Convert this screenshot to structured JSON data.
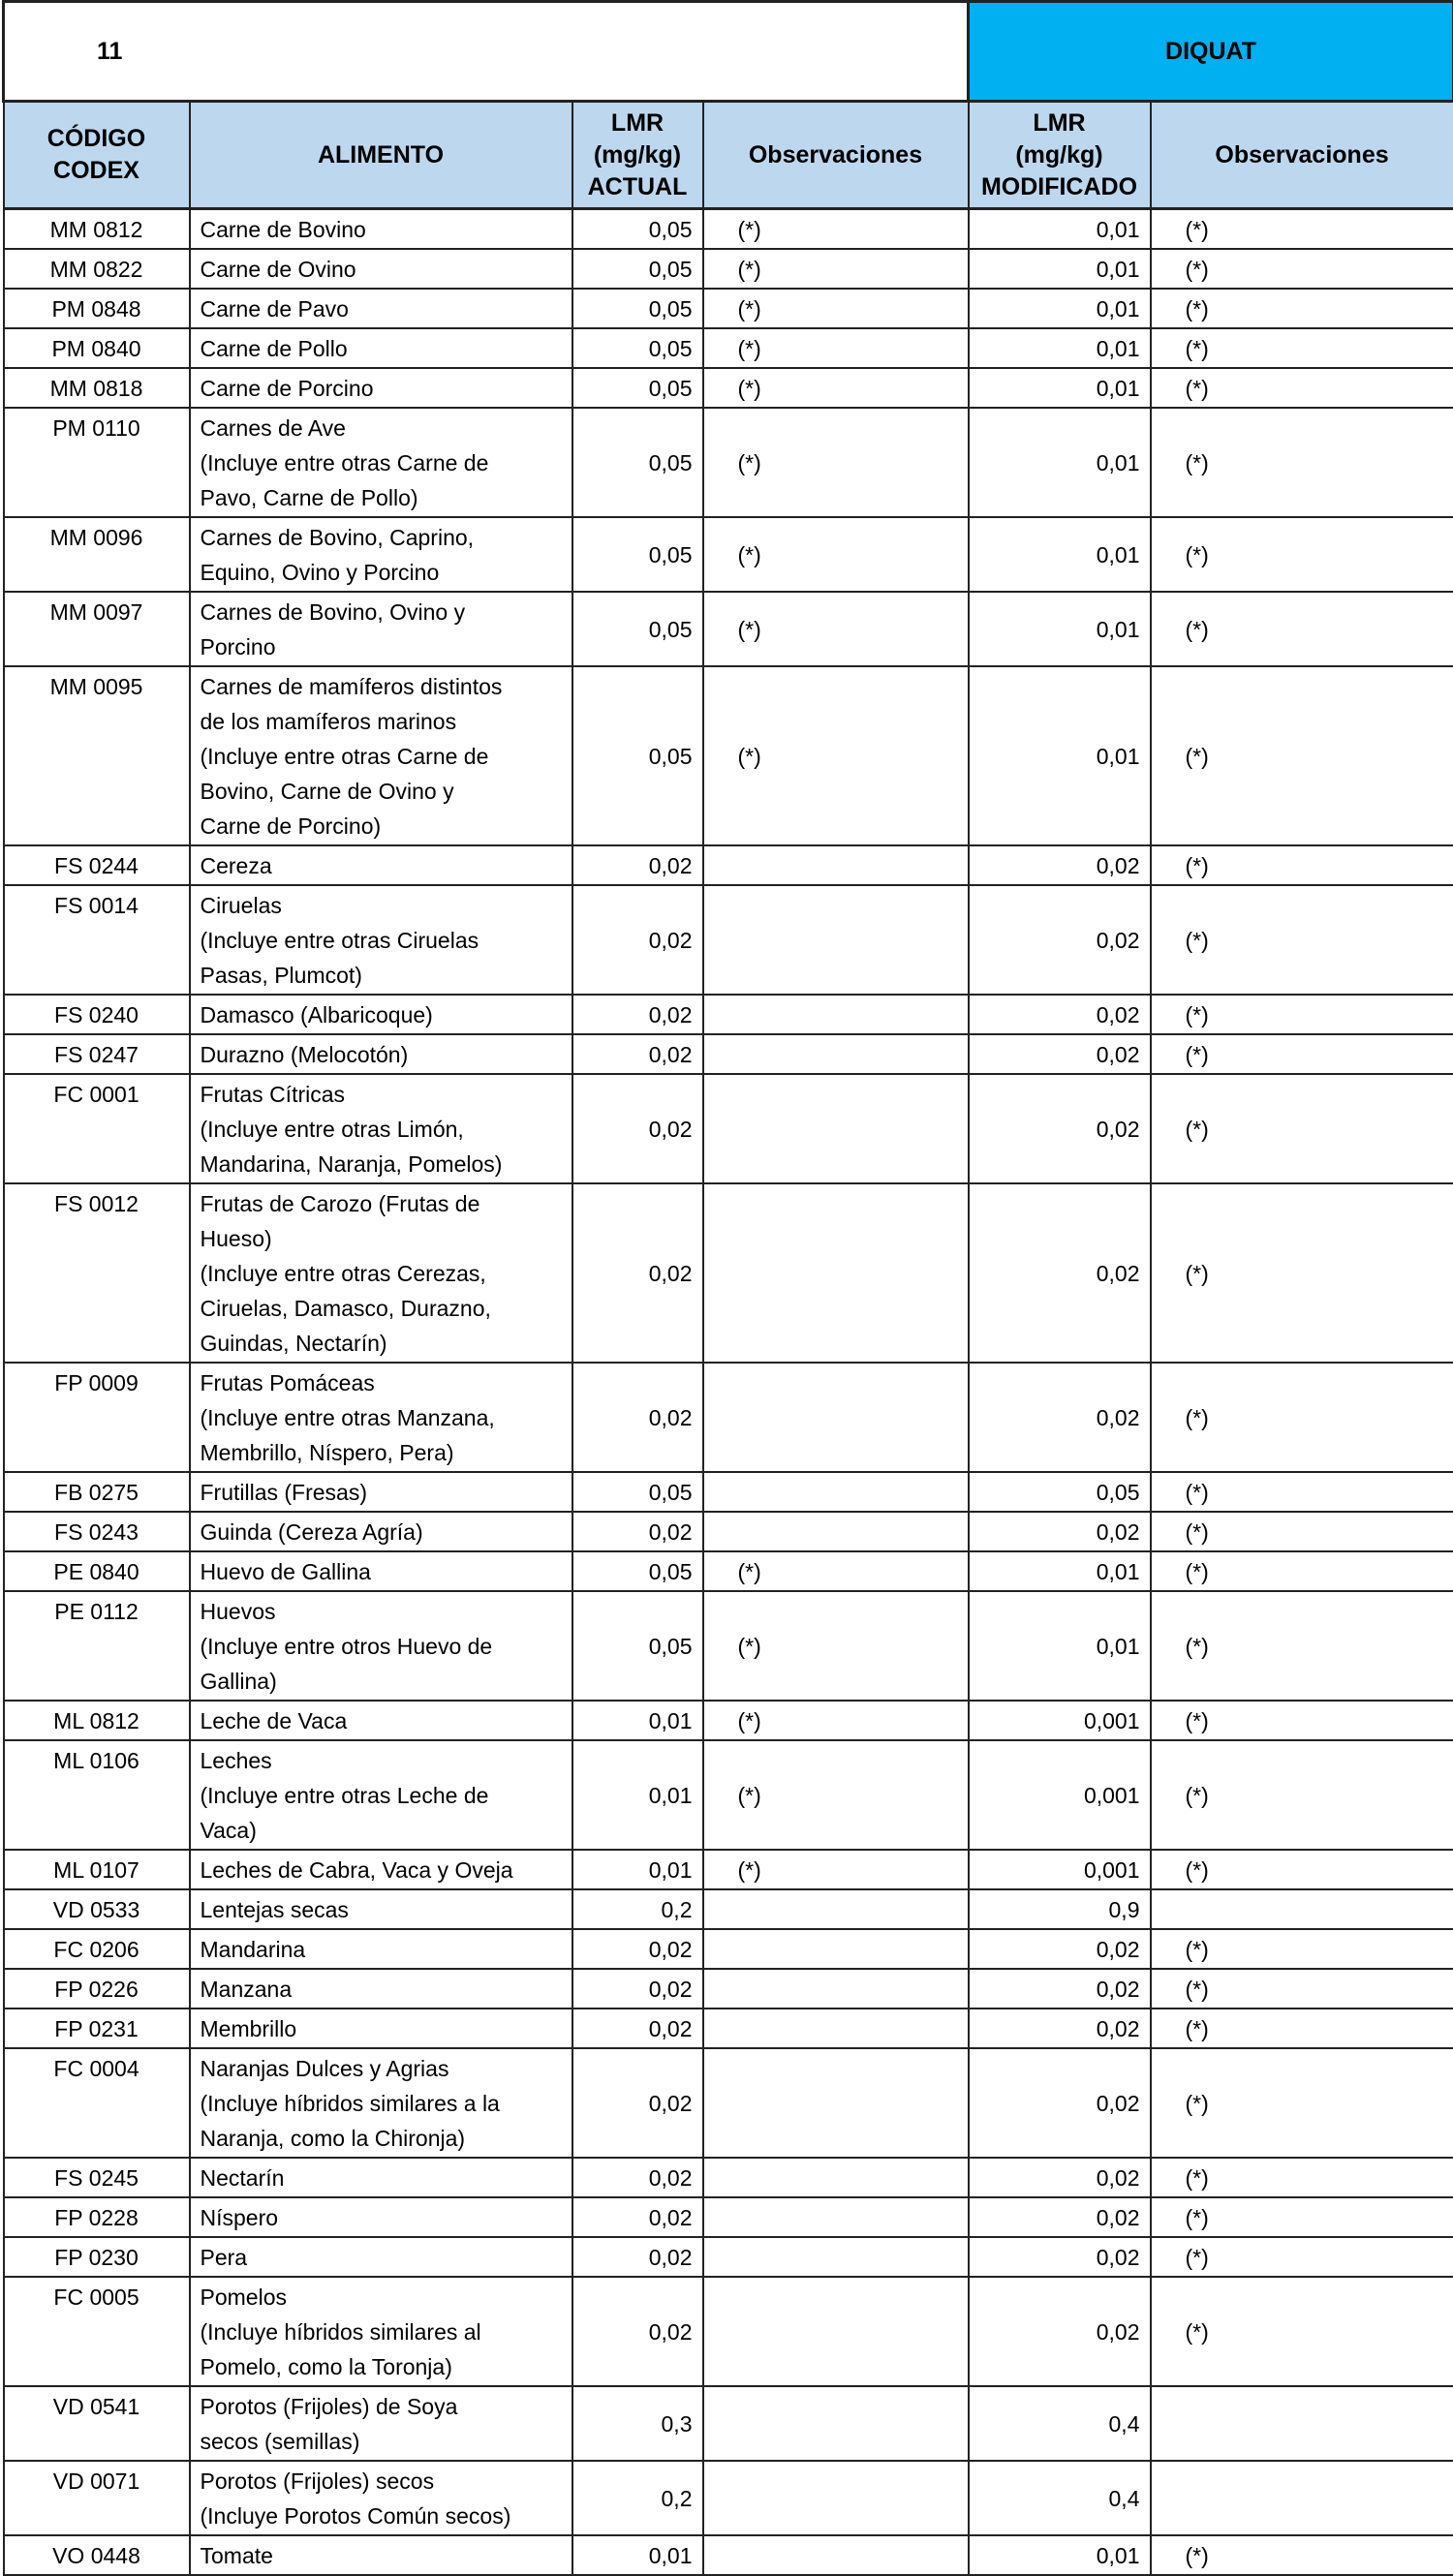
{
  "header": {
    "number": "11",
    "substance": "DIQUAT",
    "columns": {
      "code": [
        "CÓDIGO",
        "CODEX"
      ],
      "food": "ALIMENTO",
      "lmr_actual": [
        "LMR",
        "(mg/kg)",
        "ACTUAL"
      ],
      "obs_actual": "Observaciones",
      "lmr_mod": [
        "LMR",
        "(mg/kg)",
        "MODIFICADO"
      ],
      "obs_mod": "Observaciones"
    }
  },
  "colors": {
    "substance_bg": "#00B0F0",
    "header_bg": "#BDD7EE"
  },
  "rows": [
    {
      "code": "MM 0812",
      "food": [
        "Carne de Bovino"
      ],
      "lmr_actual": "0,05",
      "obs_actual": "(*)",
      "lmr_mod": "0,01",
      "obs_mod": "(*)"
    },
    {
      "code": "MM 0822",
      "food": [
        "Carne de Ovino"
      ],
      "lmr_actual": "0,05",
      "obs_actual": "(*)",
      "lmr_mod": "0,01",
      "obs_mod": "(*)"
    },
    {
      "code": "PM 0848",
      "food": [
        "Carne de Pavo"
      ],
      "lmr_actual": "0,05",
      "obs_actual": "(*)",
      "lmr_mod": "0,01",
      "obs_mod": "(*)"
    },
    {
      "code": "PM 0840",
      "food": [
        "Carne de Pollo"
      ],
      "lmr_actual": "0,05",
      "obs_actual": "(*)",
      "lmr_mod": "0,01",
      "obs_mod": "(*)"
    },
    {
      "code": "MM 0818",
      "food": [
        "Carne de Porcino"
      ],
      "lmr_actual": "0,05",
      "obs_actual": "(*)",
      "lmr_mod": "0,01",
      "obs_mod": "(*)"
    },
    {
      "code": "PM 0110",
      "food": [
        "Carnes de  Ave",
        "(Incluye entre otras Carne de",
        "Pavo, Carne de Pollo)"
      ],
      "lmr_actual": "0,05",
      "obs_actual": "(*)",
      "lmr_mod": "0,01",
      "obs_mod": "(*)"
    },
    {
      "code": "MM 0096",
      "food": [
        "Carnes de Bovino, Caprino,",
        "Equino, Ovino y Porcino"
      ],
      "lmr_actual": "0,05",
      "obs_actual": "(*)",
      "lmr_mod": "0,01",
      "obs_mod": "(*)"
    },
    {
      "code": "MM 0097",
      "food": [
        "Carnes de Bovino, Ovino y",
        "Porcino"
      ],
      "lmr_actual": "0,05",
      "obs_actual": "(*)",
      "lmr_mod": "0,01",
      "obs_mod": "(*)"
    },
    {
      "code": "MM 0095",
      "food": [
        "Carnes de mamíferos distintos",
        "de los mamíferos marinos",
        "(Incluye entre otras Carne de",
        "Bovino, Carne de Ovino y",
        "Carne de Porcino)"
      ],
      "lmr_actual": "0,05",
      "obs_actual": "(*)",
      "lmr_mod": "0,01",
      "obs_mod": "(*)"
    },
    {
      "code": "FS 0244",
      "food": [
        "Cereza"
      ],
      "lmr_actual": "0,02",
      "obs_actual": "",
      "lmr_mod": "0,02",
      "obs_mod": "(*)"
    },
    {
      "code": "FS 0014",
      "food": [
        "Ciruelas",
        "(Incluye entre otras Ciruelas",
        "Pasas, Plumcot)"
      ],
      "lmr_actual": "0,02",
      "obs_actual": "",
      "lmr_mod": "0,02",
      "obs_mod": "(*)"
    },
    {
      "code": "FS 0240",
      "food": [
        "Damasco (Albaricoque)"
      ],
      "lmr_actual": "0,02",
      "obs_actual": "",
      "lmr_mod": "0,02",
      "obs_mod": "(*)"
    },
    {
      "code": "FS 0247",
      "food": [
        "Durazno (Melocotón)"
      ],
      "lmr_actual": "0,02",
      "obs_actual": "",
      "lmr_mod": "0,02",
      "obs_mod": "(*)"
    },
    {
      "code": "FC 0001",
      "food": [
        "Frutas Cítricas",
        "(Incluye entre otras Limón,",
        "Mandarina, Naranja, Pomelos)"
      ],
      "lmr_actual": "0,02",
      "obs_actual": "",
      "lmr_mod": "0,02",
      "obs_mod": "(*)"
    },
    {
      "code": "FS 0012",
      "food": [
        "Frutas de Carozo (Frutas de",
        "Hueso)",
        "(Incluye entre otras Cerezas,",
        "Ciruelas, Damasco, Durazno,",
        "Guindas, Nectarín)"
      ],
      "lmr_actual": "0,02",
      "obs_actual": "",
      "lmr_mod": "0,02",
      "obs_mod": "(*)"
    },
    {
      "code": "FP 0009",
      "food": [
        "Frutas Pomáceas",
        "(Incluye entre otras Manzana,",
        "Membrillo, Níspero, Pera)"
      ],
      "lmr_actual": "0,02",
      "obs_actual": "",
      "lmr_mod": "0,02",
      "obs_mod": "(*)"
    },
    {
      "code": "FB 0275",
      "food": [
        "Frutillas (Fresas)"
      ],
      "lmr_actual": "0,05",
      "obs_actual": "",
      "lmr_mod": "0,05",
      "obs_mod": "(*)"
    },
    {
      "code": "FS 0243",
      "food": [
        "Guinda (Cereza Agría)"
      ],
      "lmr_actual": "0,02",
      "obs_actual": "",
      "lmr_mod": "0,02",
      "obs_mod": "(*)"
    },
    {
      "code": "PE 0840",
      "food": [
        "Huevo de Gallina"
      ],
      "lmr_actual": "0,05",
      "obs_actual": "(*)",
      "lmr_mod": "0,01",
      "obs_mod": "(*)"
    },
    {
      "code": "PE 0112",
      "food": [
        "Huevos",
        "(Incluye entre otros Huevo de",
        "Gallina)"
      ],
      "lmr_actual": "0,05",
      "obs_actual": "(*)",
      "lmr_mod": "0,01",
      "obs_mod": "(*)"
    },
    {
      "code": "ML 0812",
      "food": [
        "Leche de Vaca"
      ],
      "lmr_actual": "0,01",
      "obs_actual": "(*)",
      "lmr_mod": "0,001",
      "obs_mod": "(*)"
    },
    {
      "code": "ML 0106",
      "food": [
        "Leches",
        "(Incluye entre otras Leche de",
        "Vaca)"
      ],
      "lmr_actual": "0,01",
      "obs_actual": "(*)",
      "lmr_mod": "0,001",
      "obs_mod": "(*)"
    },
    {
      "code": "ML 0107",
      "food": [
        "Leches de Cabra, Vaca y Oveja"
      ],
      "lmr_actual": "0,01",
      "obs_actual": "(*)",
      "lmr_mod": "0,001",
      "obs_mod": "(*)"
    },
    {
      "code": "VD 0533",
      "food": [
        "Lentejas secas"
      ],
      "lmr_actual": "0,2",
      "obs_actual": "",
      "lmr_mod": "0,9",
      "obs_mod": ""
    },
    {
      "code": "FC 0206",
      "food": [
        "Mandarina"
      ],
      "lmr_actual": "0,02",
      "obs_actual": "",
      "lmr_mod": "0,02",
      "obs_mod": "(*)"
    },
    {
      "code": "FP 0226",
      "food": [
        "Manzana"
      ],
      "lmr_actual": "0,02",
      "obs_actual": "",
      "lmr_mod": "0,02",
      "obs_mod": "(*)"
    },
    {
      "code": "FP 0231",
      "food": [
        "Membrillo"
      ],
      "lmr_actual": "0,02",
      "obs_actual": "",
      "lmr_mod": "0,02",
      "obs_mod": "(*)"
    },
    {
      "code": "FC 0004",
      "food": [
        "Naranjas Dulces y Agrias",
        "(Incluye híbridos similares a la",
        "Naranja, como la Chironja)"
      ],
      "lmr_actual": "0,02",
      "obs_actual": "",
      "lmr_mod": "0,02",
      "obs_mod": "(*)"
    },
    {
      "code": "FS 0245",
      "food": [
        "Nectarín"
      ],
      "lmr_actual": "0,02",
      "obs_actual": "",
      "lmr_mod": "0,02",
      "obs_mod": "(*)"
    },
    {
      "code": "FP 0228",
      "food": [
        "Níspero"
      ],
      "lmr_actual": "0,02",
      "obs_actual": "",
      "lmr_mod": "0,02",
      "obs_mod": "(*)"
    },
    {
      "code": "FP 0230",
      "food": [
        "Pera"
      ],
      "lmr_actual": "0,02",
      "obs_actual": "",
      "lmr_mod": "0,02",
      "obs_mod": "(*)"
    },
    {
      "code": "FC 0005",
      "food": [
        "Pomelos",
        "(Incluye híbridos similares al",
        "Pomelo, como la Toronja)"
      ],
      "lmr_actual": "0,02",
      "obs_actual": "",
      "lmr_mod": "0,02",
      "obs_mod": "(*)"
    },
    {
      "code": "VD 0541",
      "food": [
        "Porotos (Frijoles) de Soya",
        "secos (semillas)"
      ],
      "lmr_actual": "0,3",
      "obs_actual": "",
      "lmr_mod": "0,4",
      "obs_mod": ""
    },
    {
      "code": "VD 0071",
      "food": [
        "Porotos (Frijoles) secos",
        "(Incluye Porotos Común secos)"
      ],
      "lmr_actual": "0,2",
      "obs_actual": "",
      "lmr_mod": "0,4",
      "obs_mod": ""
    },
    {
      "code": "VO 0448",
      "food": [
        "Tomate"
      ],
      "lmr_actual": "0,01",
      "obs_actual": "",
      "lmr_mod": "0,01",
      "obs_mod": "(*)"
    }
  ]
}
